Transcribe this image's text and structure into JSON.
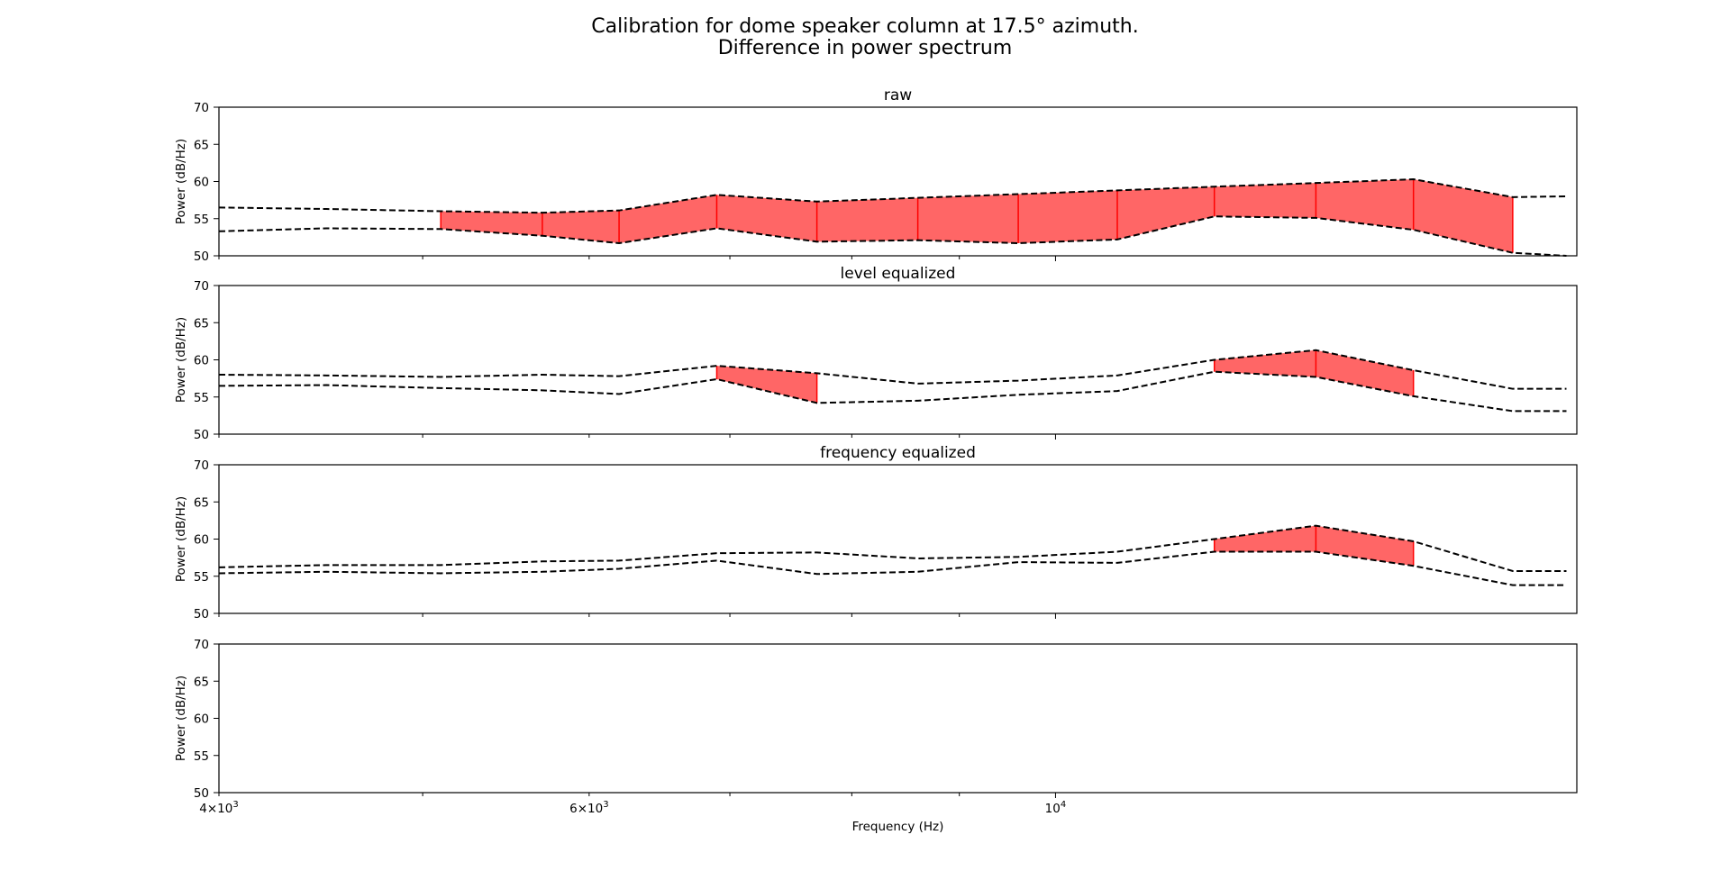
{
  "figure": {
    "title_lines": [
      "Calibration for dome speaker column at 17.5° azimuth.",
      "Difference in power spectrum"
    ]
  },
  "chart_data": [
    {
      "type": "line",
      "title": "raw",
      "xscale": "log",
      "xlim": [
        4000,
        17700
      ],
      "ylim": [
        50,
        70
      ],
      "yticks": [
        50,
        55,
        60,
        65,
        70
      ],
      "ylabel": "Power (dB/Hz)",
      "xlabel": "",
      "line_style": "dashed black",
      "fill_color": "#ff6666",
      "x": [
        4000,
        4500,
        5100,
        5700,
        6200,
        6900,
        7700,
        8600,
        9600,
        10700,
        11900,
        13300,
        14800,
        16500,
        17500
      ],
      "series": [
        {
          "values": [
            56.5,
            56.3,
            56.0,
            55.8,
            56.1,
            58.2,
            57.3,
            57.8,
            58.3,
            58.8,
            59.3,
            59.8,
            60.3,
            57.9,
            58.0
          ]
        },
        {
          "values": [
            53.3,
            53.7,
            53.6,
            52.7,
            51.7,
            53.7,
            51.9,
            52.1,
            51.7,
            52.2,
            55.3,
            55.1,
            53.5,
            50.4,
            50.0
          ]
        }
      ],
      "filled_ranges": [
        [
          5100,
          16500
        ]
      ]
    },
    {
      "type": "line",
      "title": "level equalized",
      "xscale": "log",
      "xlim": [
        4000,
        17700
      ],
      "ylim": [
        50,
        70
      ],
      "yticks": [
        50,
        55,
        60,
        65,
        70
      ],
      "ylabel": "Power (dB/Hz)",
      "xlabel": "",
      "line_style": "dashed black",
      "fill_color": "#ff6666",
      "x": [
        4000,
        4500,
        5100,
        5700,
        6200,
        6900,
        7700,
        8600,
        9600,
        10700,
        11900,
        13300,
        14800,
        16500,
        17500
      ],
      "series": [
        {
          "values": [
            58.0,
            57.9,
            57.7,
            58.0,
            57.8,
            59.2,
            58.2,
            56.8,
            57.2,
            57.9,
            60.0,
            61.3,
            58.6,
            56.1,
            56.1
          ]
        },
        {
          "values": [
            56.5,
            56.6,
            56.2,
            55.9,
            55.4,
            57.4,
            54.2,
            54.5,
            55.3,
            55.8,
            58.4,
            57.7,
            55.1,
            53.1,
            53.1
          ]
        }
      ],
      "filled_ranges": [
        [
          6900,
          7700
        ],
        [
          11900,
          14800
        ]
      ]
    },
    {
      "type": "line",
      "title": "frequency equalized",
      "xscale": "log",
      "xlim": [
        4000,
        17700
      ],
      "ylim": [
        50,
        70
      ],
      "yticks": [
        50,
        55,
        60,
        65,
        70
      ],
      "ylabel": "Power (dB/Hz)",
      "xlabel": "",
      "line_style": "dashed black",
      "fill_color": "#ff6666",
      "x": [
        4000,
        4500,
        5100,
        5700,
        6200,
        6900,
        7700,
        8600,
        9600,
        10700,
        11900,
        13300,
        14800,
        16500,
        17500
      ],
      "series": [
        {
          "values": [
            56.2,
            56.5,
            56.5,
            57.0,
            57.1,
            58.1,
            58.2,
            57.4,
            57.6,
            58.3,
            60.0,
            61.8,
            59.7,
            55.7,
            55.7
          ]
        },
        {
          "values": [
            55.4,
            55.6,
            55.4,
            55.6,
            56.0,
            57.1,
            55.3,
            55.6,
            56.9,
            56.8,
            58.3,
            58.3,
            56.4,
            53.8,
            53.8
          ]
        }
      ],
      "filled_ranges": [
        [
          11900,
          14800
        ]
      ]
    },
    {
      "type": "line",
      "title": "",
      "xscale": "log",
      "xlim": [
        4000,
        17700
      ],
      "ylim": [
        50,
        70
      ],
      "yticks": [
        50,
        55,
        60,
        65,
        70
      ],
      "ylabel": "Power (dB/Hz)",
      "xlabel": "Frequency (Hz)",
      "xtick_labels": [
        {
          "x": 4000,
          "mantissa": "4",
          "base": "10",
          "exp": "3"
        },
        {
          "x": 6000,
          "mantissa": "6",
          "base": "10",
          "exp": "3"
        },
        {
          "x": 10000,
          "mantissa": "",
          "base": "10",
          "exp": "4"
        }
      ],
      "series": []
    }
  ]
}
